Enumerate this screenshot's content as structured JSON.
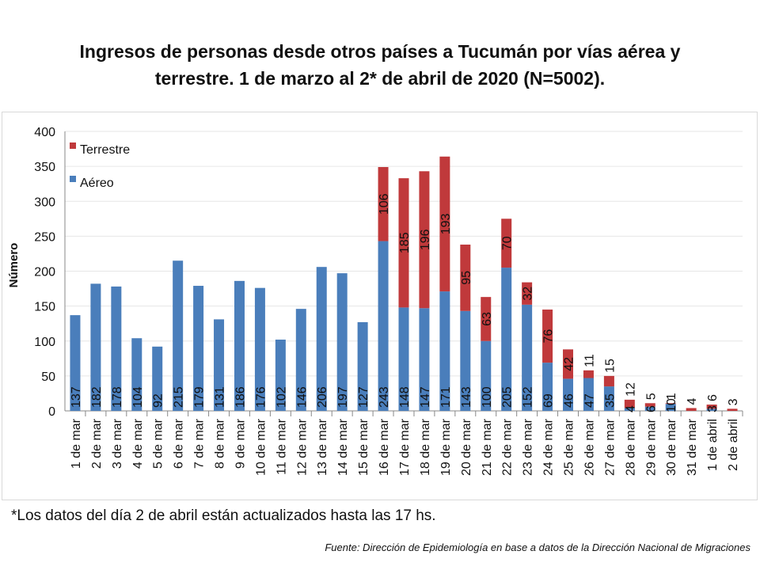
{
  "title_line1": "Ingresos de personas desde otros países a Tucumán por vías aérea y",
  "title_line2": "terrestre. 1 de marzo al 2* de abril de 2020 (N=5002).",
  "note": "*Los datos del día 2 de abril están actualizados hasta las 17 hs.",
  "source": "Fuente: Dirección de Epidemiología en base a datos de la Dirección Nacional de Migraciones",
  "chart_data": {
    "type": "bar",
    "stacked": true,
    "ylabel": "Número",
    "ylim": [
      0,
      400
    ],
    "yticks": [
      0,
      50,
      100,
      150,
      200,
      250,
      300,
      350,
      400
    ],
    "grid": true,
    "legend": "top-left",
    "categories": [
      "1 de mar",
      "2 de mar",
      "3 de mar",
      "4 de mar",
      "5 de mar",
      "6 de mar",
      "7 de mar",
      "8 de mar",
      "9 de mar",
      "10 de mar",
      "11 de mar",
      "12 de mar",
      "13 de mar",
      "14 de mar",
      "15 de mar",
      "16 de mar",
      "17 de mar",
      "18 de mar",
      "19 de mar",
      "20 de mar",
      "21 de mar",
      "22 de mar",
      "23 de mar",
      "24 de mar",
      "25 de mar",
      "26 de mar",
      "27 de mar",
      "28 de mar",
      "29 de mar",
      "30 de mar",
      "31 de mar",
      "1 de abril",
      "2 de abril"
    ],
    "series": [
      {
        "name": "Aéreo",
        "color": "#4a7ebb",
        "values": [
          137,
          182,
          178,
          104,
          92,
          215,
          179,
          131,
          186,
          176,
          102,
          146,
          206,
          197,
          127,
          243,
          148,
          147,
          171,
          143,
          100,
          205,
          152,
          69,
          46,
          47,
          35,
          4,
          6,
          10,
          0,
          3,
          0
        ]
      },
      {
        "name": "Terrestre",
        "color": "#c0393b",
        "values": [
          0,
          0,
          0,
          0,
          0,
          0,
          0,
          0,
          0,
          0,
          0,
          0,
          0,
          0,
          0,
          106,
          185,
          196,
          193,
          95,
          63,
          70,
          32,
          76,
          42,
          11,
          15,
          12,
          5,
          1,
          4,
          6,
          3
        ]
      }
    ]
  }
}
